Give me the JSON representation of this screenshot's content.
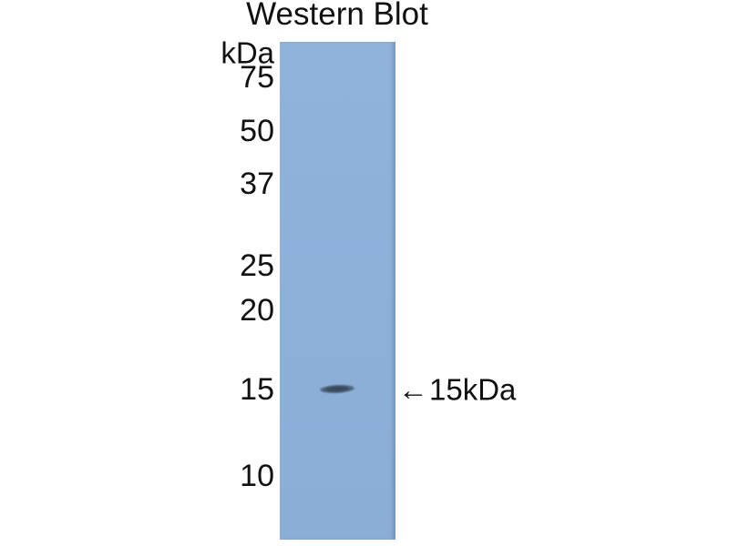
{
  "figure": {
    "title": "Western Blot",
    "unit_label": "kDa",
    "ladder_markers": [
      {
        "value": "75"
      },
      {
        "value": "50"
      },
      {
        "value": "37"
      },
      {
        "value": "25"
      },
      {
        "value": "20"
      },
      {
        "value": "15"
      },
      {
        "value": "10"
      }
    ],
    "band": {
      "arrow": "←",
      "label": "15kDa"
    },
    "colors": {
      "membrane_blue": "#8db0d9",
      "band_dark": "#3c4e60",
      "text": "#111111",
      "background": "#ffffff"
    }
  }
}
